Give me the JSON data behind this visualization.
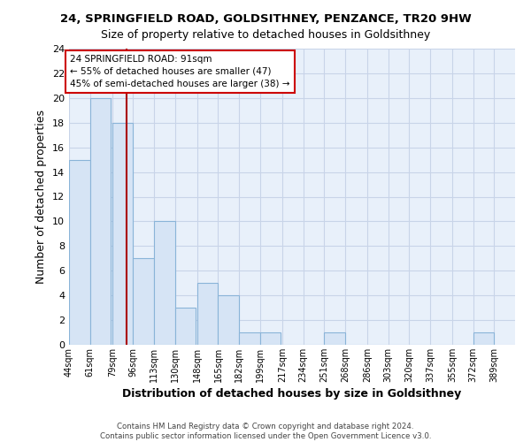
{
  "title": "24, SPRINGFIELD ROAD, GOLDSITHNEY, PENZANCE, TR20 9HW",
  "subtitle": "Size of property relative to detached houses in Goldsithney",
  "xlabel": "Distribution of detached houses by size in Goldsithney",
  "ylabel": "Number of detached properties",
  "bar_values": [
    15,
    20,
    18,
    7,
    10,
    3,
    5,
    4,
    1,
    1,
    0,
    0,
    1,
    0,
    0,
    0,
    0,
    0,
    0,
    1
  ],
  "bin_labels": [
    "44sqm",
    "61sqm",
    "79sqm",
    "96sqm",
    "113sqm",
    "130sqm",
    "148sqm",
    "165sqm",
    "182sqm",
    "199sqm",
    "217sqm",
    "234sqm",
    "251sqm",
    "268sqm",
    "286sqm",
    "303sqm",
    "320sqm",
    "337sqm",
    "355sqm",
    "372sqm",
    "389sqm"
  ],
  "bar_color": "#d6e4f5",
  "bar_edge_color": "#8ab4d8",
  "red_line_color": "#aa0000",
  "annotation_box_edge": "#cc0000",
  "ylim": [
    0,
    24
  ],
  "yticks": [
    0,
    2,
    4,
    6,
    8,
    10,
    12,
    14,
    16,
    18,
    20,
    22,
    24
  ],
  "footer_line1": "Contains HM Land Registry data © Crown copyright and database right 2024.",
  "footer_line2": "Contains public sector information licensed under the Open Government Licence v3.0.",
  "bin_edges": [
    44,
    61,
    79,
    96,
    113,
    130,
    148,
    165,
    182,
    199,
    217,
    234,
    251,
    268,
    286,
    303,
    320,
    337,
    355,
    372,
    389
  ],
  "red_line_x": 91,
  "ann_line0": "24 SPRINGFIELD ROAD: 91sqm",
  "ann_line1": "← 55% of detached houses are smaller (47)",
  "ann_line2": "45% of semi-detached houses are larger (38) →",
  "bg_color": "#e8f0fa",
  "grid_color": "#c8d4e8",
  "title_fontsize": 9.5,
  "subtitle_fontsize": 9,
  "axis_label_fontsize": 9,
  "tick_fontsize": 8,
  "xtick_fontsize": 7,
  "ann_fontsize": 7.5,
  "footer_fontsize": 6.2
}
